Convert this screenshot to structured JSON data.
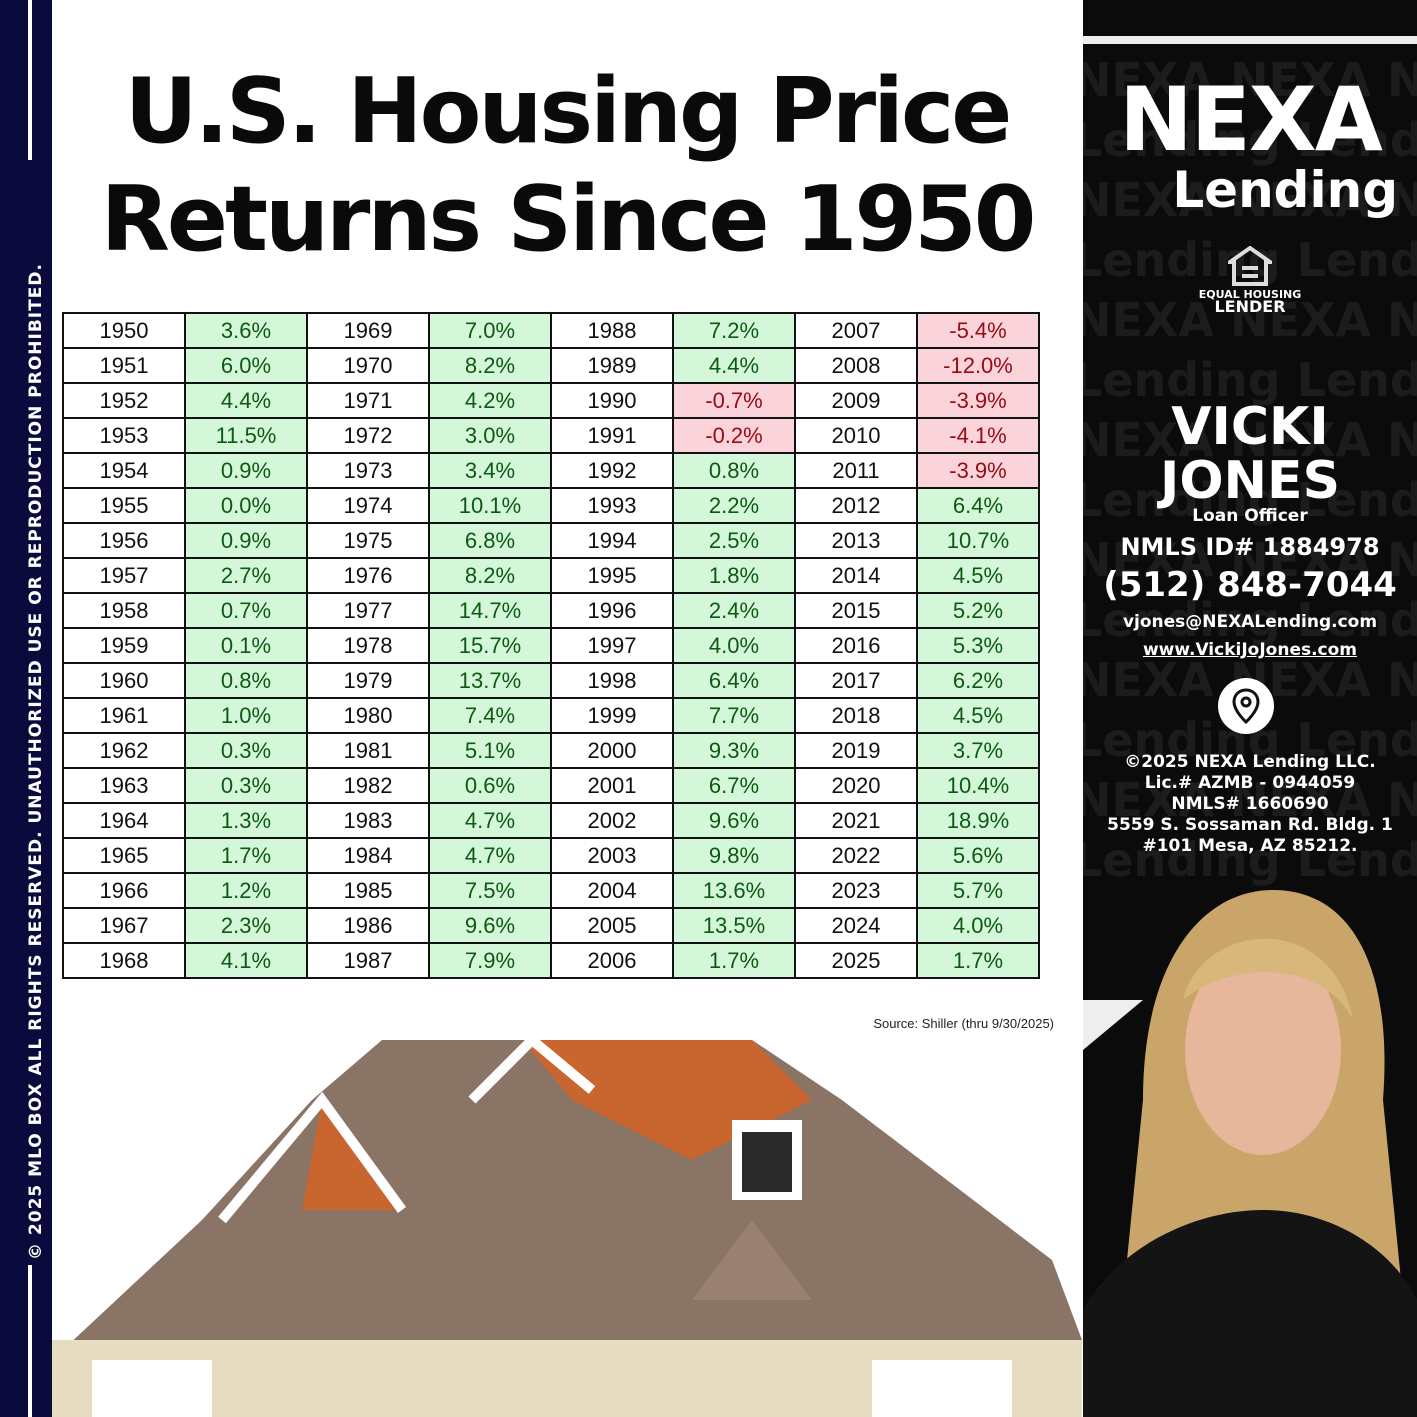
{
  "sidebar": {
    "copyright_text": "© 2025 MLO BOX  ALL RIGHTS RESERVED. UNAUTHORIZED USE OR REPRODUCTION PROHIBITED."
  },
  "title": {
    "line1": "U.S. Housing Price",
    "line2": "Returns Since 1950"
  },
  "table": {
    "groups": [
      {
        "years": [
          "1950",
          "1951",
          "1952",
          "1953",
          "1954",
          "1955",
          "1956",
          "1957",
          "1958",
          "1959",
          "1960",
          "1961",
          "1962",
          "1963",
          "1964",
          "1965",
          "1966",
          "1967",
          "1968"
        ],
        "values": [
          "3.6%",
          "6.0%",
          "4.4%",
          "11.5%",
          "0.9%",
          "0.0%",
          "0.9%",
          "2.7%",
          "0.7%",
          "0.1%",
          "0.8%",
          "1.0%",
          "0.3%",
          "0.3%",
          "1.3%",
          "1.7%",
          "1.2%",
          "2.3%",
          "4.1%"
        ]
      },
      {
        "years": [
          "1969",
          "1970",
          "1971",
          "1972",
          "1973",
          "1974",
          "1975",
          "1976",
          "1977",
          "1978",
          "1979",
          "1980",
          "1981",
          "1982",
          "1983",
          "1984",
          "1985",
          "1986",
          "1987"
        ],
        "values": [
          "7.0%",
          "8.2%",
          "4.2%",
          "3.0%",
          "3.4%",
          "10.1%",
          "6.8%",
          "8.2%",
          "14.7%",
          "15.7%",
          "13.7%",
          "7.4%",
          "5.1%",
          "0.6%",
          "4.7%",
          "4.7%",
          "7.5%",
          "9.6%",
          "7.9%"
        ]
      },
      {
        "years": [
          "1988",
          "1989",
          "1990",
          "1991",
          "1992",
          "1993",
          "1994",
          "1995",
          "1996",
          "1997",
          "1998",
          "1999",
          "2000",
          "2001",
          "2002",
          "2003",
          "2004",
          "2005",
          "2006"
        ],
        "values": [
          "7.2%",
          "4.4%",
          "-0.7%",
          "-0.2%",
          "0.8%",
          "2.2%",
          "2.5%",
          "1.8%",
          "2.4%",
          "4.0%",
          "6.4%",
          "7.7%",
          "9.3%",
          "6.7%",
          "9.6%",
          "9.8%",
          "13.6%",
          "13.5%",
          "1.7%"
        ]
      },
      {
        "years": [
          "2007",
          "2008",
          "2009",
          "2010",
          "2011",
          "2012",
          "2013",
          "2014",
          "2015",
          "2016",
          "2017",
          "2018",
          "2019",
          "2020",
          "2021",
          "2022",
          "2023",
          "2024",
          "2025"
        ],
        "values": [
          "-5.4%",
          "-12.0%",
          "-3.9%",
          "-4.1%",
          "-3.9%",
          "6.4%",
          "10.7%",
          "4.5%",
          "5.2%",
          "5.3%",
          "6.2%",
          "4.5%",
          "3.7%",
          "10.4%",
          "18.9%",
          "5.6%",
          "5.7%",
          "4.0%",
          "1.7%"
        ]
      }
    ],
    "colors": {
      "positive_bg": "#d4f7d9",
      "negative_bg": "#fbd3db"
    }
  },
  "source": "Source: Shiller (thru 9/30/2025)",
  "panel": {
    "logo_line1": "NEXA",
    "logo_line2": "Lending",
    "eho_line1": "EQUAL HOUSING",
    "eho_line2": "LENDER",
    "name_line1": "VICKI",
    "name_line2": "JONES",
    "role": "Loan Officer",
    "nmls": "NMLS ID# 1884978",
    "phone": "(512) 848-7044",
    "email": "vjones@NEXALending.com",
    "website": "www.VickiJoJones.com",
    "legal": [
      "©2025 NEXA Lending LLC.",
      "Lic.# AZMB - 0944059",
      "NMLS# 1660690",
      "5559 S. Sossaman Rd. Bldg. 1",
      "#101 Mesa, AZ 85212."
    ],
    "location_icon": "map-pin-icon"
  }
}
